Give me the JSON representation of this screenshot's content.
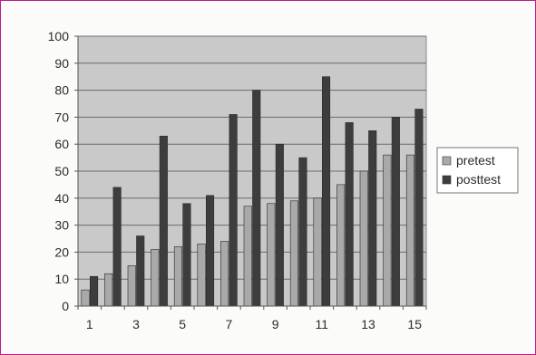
{
  "chart_data": {
    "type": "bar",
    "title": "",
    "xlabel": "",
    "ylabel": "",
    "ylim": [
      0,
      100
    ],
    "yticks": [
      0,
      10,
      20,
      30,
      40,
      50,
      60,
      70,
      80,
      90,
      100
    ],
    "categories": [
      "1",
      "2",
      "3",
      "4",
      "5",
      "6",
      "7",
      "8",
      "9",
      "10",
      "11",
      "12",
      "13",
      "14",
      "15"
    ],
    "xtick_labels_shown": [
      "1",
      "3",
      "5",
      "7",
      "9",
      "11",
      "13",
      "15"
    ],
    "grid": true,
    "legend_position": "right",
    "series": [
      {
        "name": "pretest",
        "color": "#a9a9a9",
        "values": [
          6,
          12,
          15,
          21,
          22,
          23,
          24,
          37,
          38,
          39,
          40,
          45,
          50,
          56,
          56
        ]
      },
      {
        "name": "posttest",
        "color": "#3d3d3d",
        "values": [
          11,
          44,
          26,
          63,
          38,
          41,
          71,
          80,
          60,
          55,
          85,
          68,
          65,
          70,
          73
        ]
      }
    ]
  }
}
